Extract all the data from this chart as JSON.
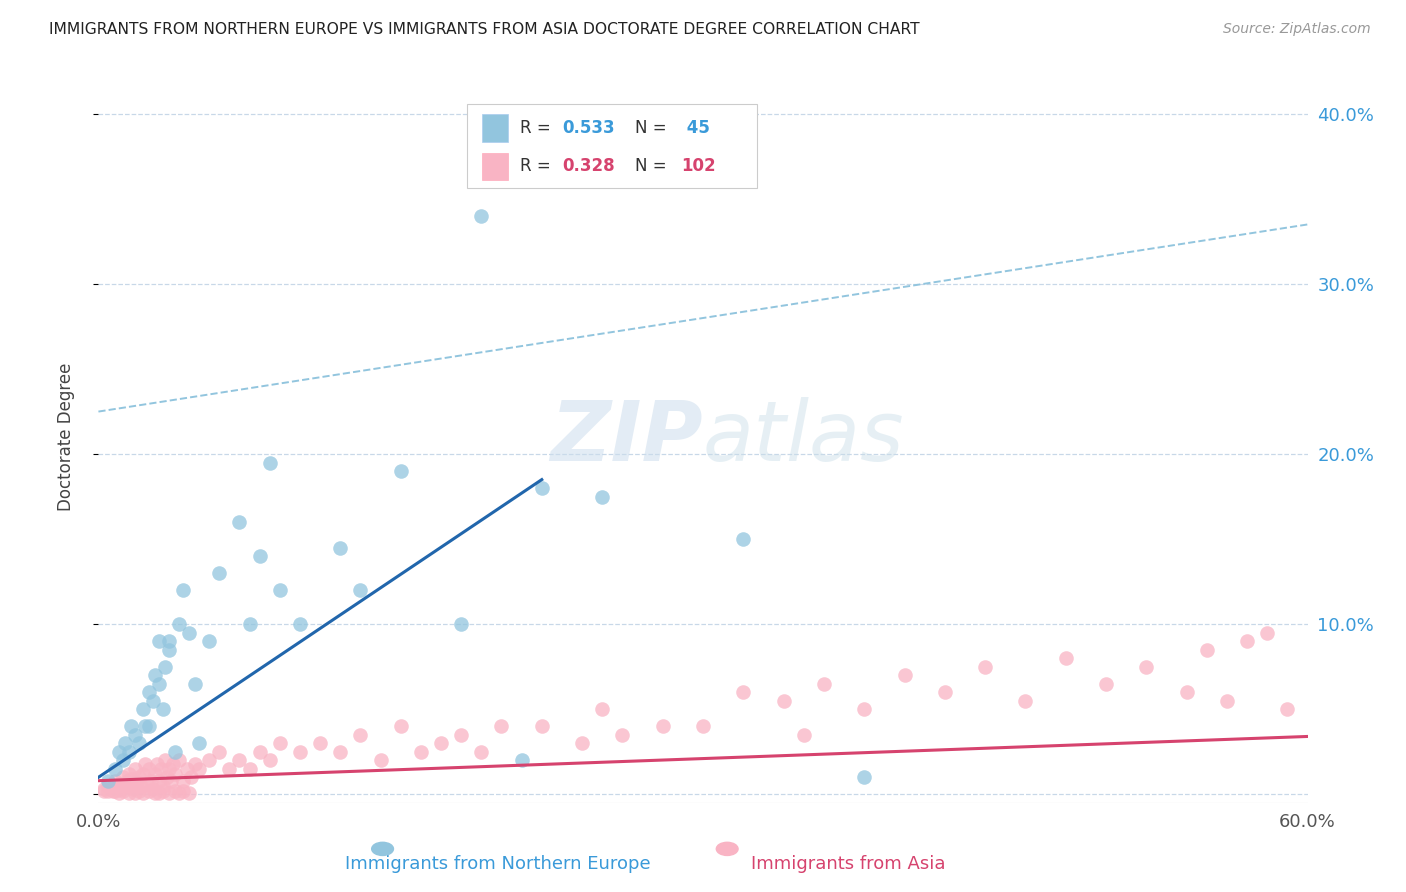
{
  "title": "IMMIGRANTS FROM NORTHERN EUROPE VS IMMIGRANTS FROM ASIA DOCTORATE DEGREE CORRELATION CHART",
  "source": "Source: ZipAtlas.com",
  "xlabel_blue": "Immigrants from Northern Europe",
  "xlabel_pink": "Immigrants from Asia",
  "ylabel": "Doctorate Degree",
  "xlim": [
    0.0,
    0.6
  ],
  "ylim": [
    -0.005,
    0.425
  ],
  "yticks": [
    0.0,
    0.1,
    0.2,
    0.3,
    0.4
  ],
  "xticks": [
    0.0,
    0.1,
    0.2,
    0.3,
    0.4,
    0.5,
    0.6
  ],
  "ytick_labels_right": [
    "",
    "10.0%",
    "20.0%",
    "30.0%",
    "40.0%"
  ],
  "color_blue": "#92c5de",
  "color_pink": "#f9b4c4",
  "line_blue": "#2166ac",
  "line_pink": "#d6436e",
  "line_dashed_color": "#92c5de",
  "background": "#ffffff",
  "grid_color": "#c8d8e8",
  "blue_r": "0.533",
  "blue_n": "45",
  "pink_r": "0.328",
  "pink_n": "102",
  "blue_scatter_x": [
    0.005,
    0.008,
    0.01,
    0.012,
    0.013,
    0.015,
    0.016,
    0.018,
    0.02,
    0.022,
    0.023,
    0.025,
    0.025,
    0.027,
    0.028,
    0.03,
    0.03,
    0.032,
    0.033,
    0.035,
    0.035,
    0.038,
    0.04,
    0.042,
    0.045,
    0.048,
    0.05,
    0.055,
    0.06,
    0.07,
    0.075,
    0.08,
    0.085,
    0.09,
    0.1,
    0.12,
    0.13,
    0.15,
    0.18,
    0.19,
    0.21,
    0.22,
    0.25,
    0.32,
    0.38
  ],
  "blue_scatter_y": [
    0.008,
    0.015,
    0.025,
    0.02,
    0.03,
    0.025,
    0.04,
    0.035,
    0.03,
    0.05,
    0.04,
    0.06,
    0.04,
    0.055,
    0.07,
    0.065,
    0.09,
    0.05,
    0.075,
    0.085,
    0.09,
    0.025,
    0.1,
    0.12,
    0.095,
    0.065,
    0.03,
    0.09,
    0.13,
    0.16,
    0.1,
    0.14,
    0.195,
    0.12,
    0.1,
    0.145,
    0.12,
    0.19,
    0.1,
    0.34,
    0.02,
    0.18,
    0.175,
    0.15,
    0.01
  ],
  "pink_scatter_x": [
    0.003,
    0.005,
    0.007,
    0.008,
    0.009,
    0.01,
    0.011,
    0.012,
    0.013,
    0.014,
    0.015,
    0.015,
    0.016,
    0.017,
    0.018,
    0.019,
    0.02,
    0.021,
    0.022,
    0.023,
    0.024,
    0.025,
    0.026,
    0.027,
    0.028,
    0.029,
    0.03,
    0.031,
    0.032,
    0.033,
    0.034,
    0.035,
    0.036,
    0.037,
    0.038,
    0.04,
    0.042,
    0.044,
    0.046,
    0.048,
    0.05,
    0.055,
    0.06,
    0.065,
    0.07,
    0.075,
    0.08,
    0.085,
    0.09,
    0.1,
    0.11,
    0.12,
    0.13,
    0.14,
    0.15,
    0.16,
    0.17,
    0.18,
    0.19,
    0.2,
    0.22,
    0.24,
    0.25,
    0.26,
    0.28,
    0.3,
    0.32,
    0.34,
    0.35,
    0.36,
    0.38,
    0.4,
    0.42,
    0.44,
    0.46,
    0.48,
    0.5,
    0.52,
    0.54,
    0.55,
    0.56,
    0.57,
    0.58,
    0.59,
    0.003,
    0.005,
    0.008,
    0.01,
    0.012,
    0.015,
    0.018,
    0.02,
    0.022,
    0.025,
    0.028,
    0.03,
    0.032,
    0.035,
    0.038,
    0.04,
    0.042,
    0.045
  ],
  "pink_scatter_y": [
    0.003,
    0.005,
    0.002,
    0.008,
    0.004,
    0.006,
    0.003,
    0.01,
    0.005,
    0.008,
    0.012,
    0.005,
    0.009,
    0.003,
    0.015,
    0.007,
    0.01,
    0.005,
    0.012,
    0.018,
    0.006,
    0.015,
    0.008,
    0.003,
    0.012,
    0.018,
    0.008,
    0.015,
    0.005,
    0.02,
    0.01,
    0.015,
    0.008,
    0.018,
    0.012,
    0.02,
    0.008,
    0.015,
    0.01,
    0.018,
    0.015,
    0.02,
    0.025,
    0.015,
    0.02,
    0.015,
    0.025,
    0.02,
    0.03,
    0.025,
    0.03,
    0.025,
    0.035,
    0.02,
    0.04,
    0.025,
    0.03,
    0.035,
    0.025,
    0.04,
    0.04,
    0.03,
    0.05,
    0.035,
    0.04,
    0.04,
    0.06,
    0.055,
    0.035,
    0.065,
    0.05,
    0.07,
    0.06,
    0.075,
    0.055,
    0.08,
    0.065,
    0.075,
    0.06,
    0.085,
    0.055,
    0.09,
    0.095,
    0.05,
    0.002,
    0.002,
    0.002,
    0.001,
    0.002,
    0.001,
    0.001,
    0.002,
    0.001,
    0.002,
    0.001,
    0.001,
    0.002,
    0.001,
    0.002,
    0.001,
    0.002,
    0.001
  ],
  "blue_line_x": [
    0.0,
    0.22
  ],
  "blue_line_y": [
    0.01,
    0.185
  ],
  "pink_line_x": [
    0.0,
    0.6
  ],
  "pink_line_y": [
    0.008,
    0.034
  ],
  "dash_line_x": [
    0.0,
    0.6
  ],
  "dash_line_y": [
    0.225,
    0.335
  ]
}
